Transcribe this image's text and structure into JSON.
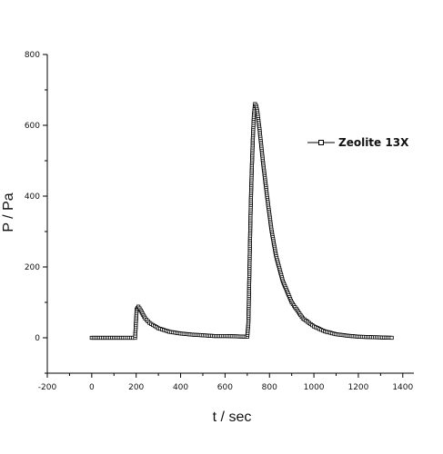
{
  "chart_data": {
    "type": "scatter",
    "title": "",
    "xlabel": "t / sec",
    "ylabel": "P / Pa",
    "xlim": [
      -200,
      1450
    ],
    "ylim": [
      -100,
      800
    ],
    "x_ticks": [
      -200,
      0,
      200,
      400,
      600,
      800,
      1000,
      1200,
      1400
    ],
    "y_ticks": [
      0,
      200,
      400,
      600,
      800
    ],
    "grid": false,
    "legend_position": "top-right",
    "series": [
      {
        "name": "Zeolite 13X",
        "marker": "open-square",
        "color": "#000000",
        "points": [
          [
            0,
            0
          ],
          [
            50,
            0
          ],
          [
            100,
            0
          ],
          [
            150,
            0
          ],
          [
            195,
            0
          ],
          [
            198,
            30
          ],
          [
            202,
            80
          ],
          [
            210,
            88
          ],
          [
            220,
            78
          ],
          [
            240,
            55
          ],
          [
            260,
            42
          ],
          [
            300,
            27
          ],
          [
            350,
            17
          ],
          [
            400,
            12
          ],
          [
            450,
            9
          ],
          [
            500,
            7
          ],
          [
            550,
            5
          ],
          [
            600,
            5
          ],
          [
            650,
            4
          ],
          [
            700,
            3
          ],
          [
            705,
            40
          ],
          [
            708,
            130
          ],
          [
            712,
            260
          ],
          [
            716,
            380
          ],
          [
            720,
            470
          ],
          [
            725,
            560
          ],
          [
            730,
            630
          ],
          [
            735,
            660
          ],
          [
            740,
            655
          ],
          [
            745,
            640
          ],
          [
            755,
            590
          ],
          [
            770,
            500
          ],
          [
            790,
            395
          ],
          [
            810,
            300
          ],
          [
            830,
            230
          ],
          [
            860,
            160
          ],
          [
            900,
            100
          ],
          [
            950,
            55
          ],
          [
            1000,
            32
          ],
          [
            1050,
            18
          ],
          [
            1100,
            10
          ],
          [
            1150,
            6
          ],
          [
            1200,
            3
          ],
          [
            1250,
            2
          ],
          [
            1300,
            1
          ],
          [
            1350,
            0
          ]
        ]
      }
    ]
  }
}
